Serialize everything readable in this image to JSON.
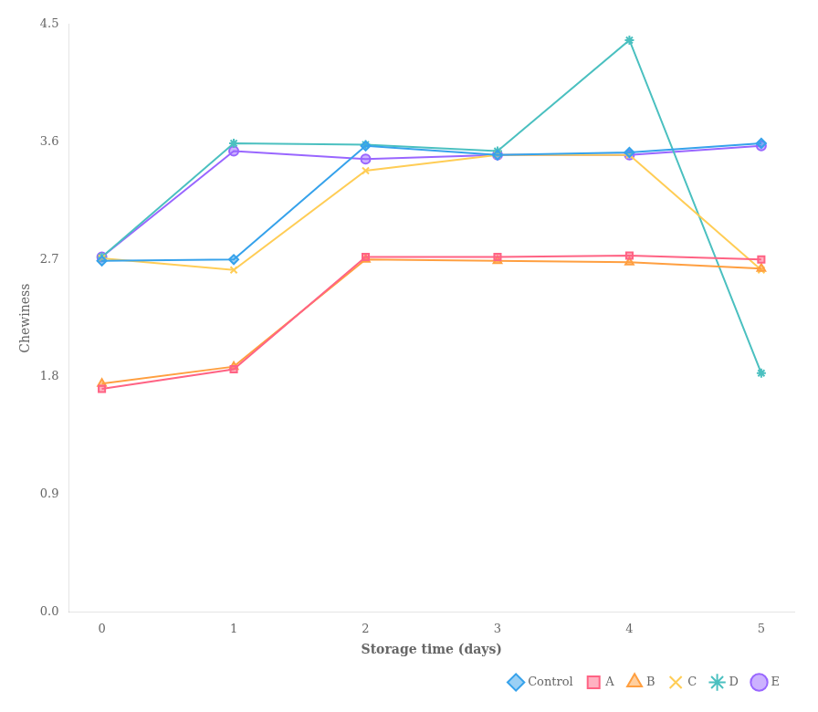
{
  "chart_data": {
    "type": "line",
    "x": [
      0,
      1,
      2,
      3,
      4,
      5
    ],
    "series": [
      {
        "name": "Control",
        "values": [
          2.69,
          2.7,
          3.57,
          3.5,
          3.52,
          3.59
        ],
        "marker": "diamond"
      },
      {
        "name": "A",
        "values": [
          1.71,
          1.86,
          2.72,
          2.72,
          2.73,
          2.7
        ],
        "marker": "square"
      },
      {
        "name": "B",
        "values": [
          1.75,
          1.88,
          2.7,
          2.69,
          2.68,
          2.63
        ],
        "marker": "triangle"
      },
      {
        "name": "C",
        "values": [
          2.71,
          2.62,
          3.38,
          3.5,
          3.5,
          2.62
        ],
        "marker": "x"
      },
      {
        "name": "D",
        "values": [
          2.72,
          3.59,
          3.58,
          3.53,
          4.38,
          1.83
        ],
        "marker": "star"
      },
      {
        "name": "E",
        "values": [
          2.72,
          3.53,
          3.47,
          3.5,
          3.5,
          3.57
        ],
        "marker": "circle"
      }
    ],
    "xlabel": "Storage time (days)",
    "ylabel": "Chewiness",
    "xlim": [
      -0.25,
      5.25
    ],
    "ylim": [
      0.0,
      4.5
    ],
    "xticks": [
      0,
      1,
      2,
      3,
      4,
      5
    ],
    "yticks": [
      {
        "value": 0,
        "label": "0.0"
      },
      0.9,
      1.8,
      2.7,
      3.6,
      4.5
    ],
    "grid": false,
    "legend": "lower right"
  }
}
